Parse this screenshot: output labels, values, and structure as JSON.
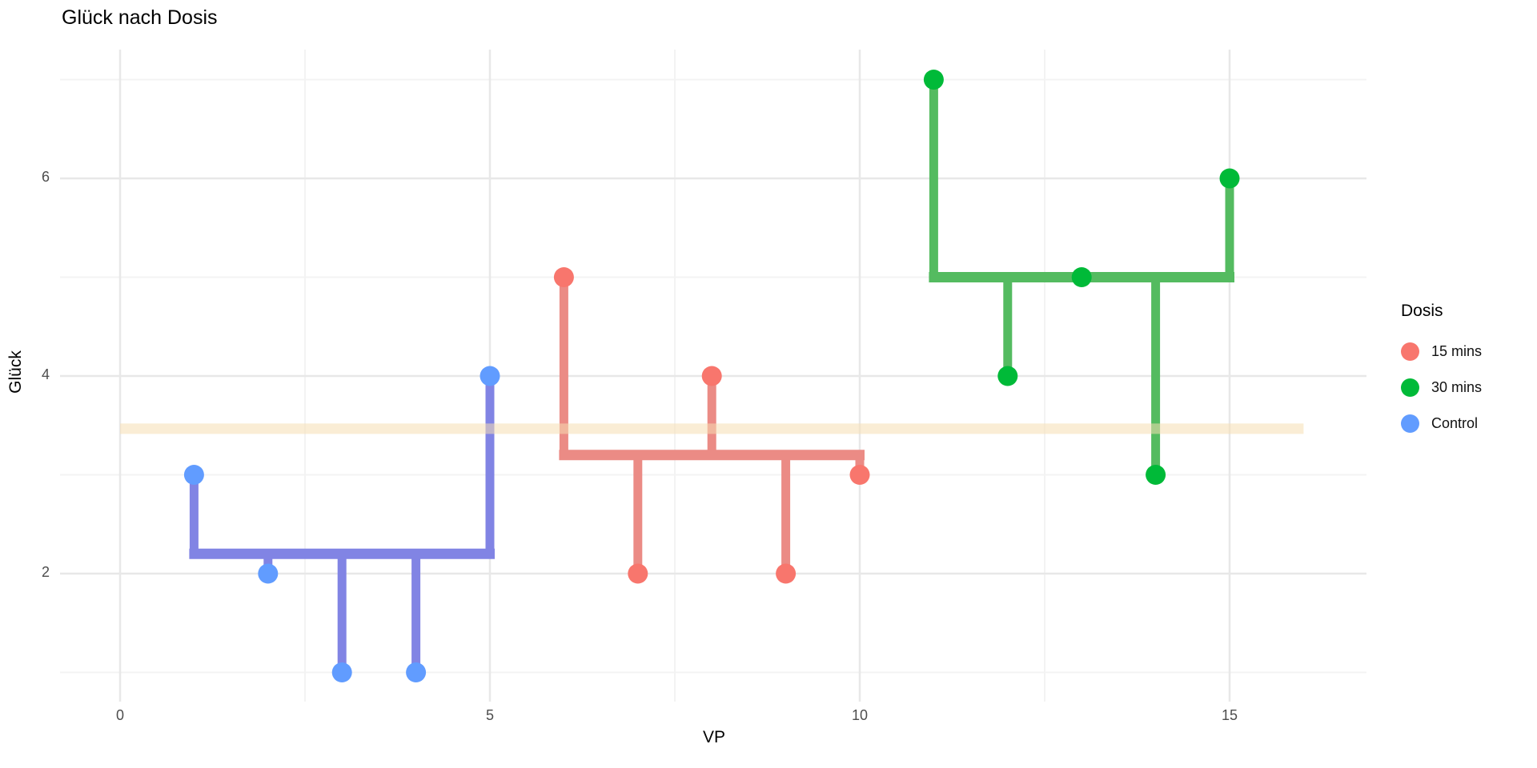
{
  "title": "Glück nach Dosis",
  "axes": {
    "x": {
      "label": "VP",
      "ticks": [
        0,
        5,
        10,
        15
      ],
      "minor": [
        2.5,
        7.5,
        12.5
      ]
    },
    "y": {
      "label": "Glück",
      "ticks": [
        2,
        4,
        6
      ],
      "minor": [
        1,
        3,
        5,
        7
      ]
    }
  },
  "legend": {
    "title": "Dosis",
    "entries": [
      {
        "label": "15 mins",
        "color": "#F8766D"
      },
      {
        "label": "30 mins",
        "color": "#00BA38"
      },
      {
        "label": "Control",
        "color": "#619CFF"
      }
    ]
  },
  "chart_data": {
    "type": "scatter",
    "title": "Glück nach Dosis",
    "xlabel": "VP",
    "ylabel": "Glück",
    "xlim": [
      -0.8,
      16.85
    ],
    "ylim": [
      0.7,
      7.3
    ],
    "grid": "on",
    "legend_position": "right",
    "grand_mean": {
      "value": 3.4667,
      "x_start": 0,
      "x_end": 16,
      "color": "#F5DEB3"
    },
    "series": [
      {
        "name": "Control",
        "point_color": "#619CFF",
        "stem_color": "#8184E4",
        "group_mean": 2.2,
        "mean_x": [
          1,
          5
        ],
        "x": [
          1,
          2,
          3,
          4,
          5
        ],
        "y": [
          3,
          2,
          1,
          1,
          4
        ]
      },
      {
        "name": "15 mins",
        "point_color": "#F8766D",
        "stem_color": "#EB8B85",
        "group_mean": 3.2,
        "mean_x": [
          6,
          10
        ],
        "x": [
          6,
          7,
          8,
          9,
          10
        ],
        "y": [
          5,
          2,
          4,
          2,
          3
        ]
      },
      {
        "name": "30 mins",
        "point_color": "#00BA38",
        "stem_color": "#54BB60",
        "group_mean": 5.0,
        "mean_x": [
          11,
          15
        ],
        "x": [
          11,
          12,
          13,
          14,
          15
        ],
        "y": [
          7,
          4,
          5,
          3,
          6
        ]
      }
    ]
  }
}
